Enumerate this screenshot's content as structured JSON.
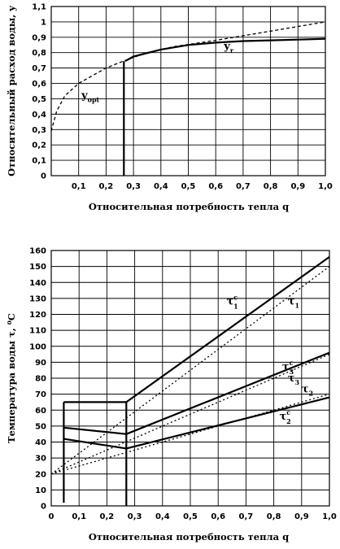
{
  "chart_data": [
    {
      "type": "line",
      "xlabel": "Относительная потребность тепла q",
      "ylabel": "Относительный расход воды, y",
      "xlim": [
        0,
        1.0
      ],
      "ylim": [
        0,
        1.1
      ],
      "grid": true,
      "x_ticks": [
        "0,1",
        "0,2",
        "0,3",
        "0,4",
        "0,5",
        "0,6",
        "0,7",
        "0,8",
        "0,9",
        "1,0"
      ],
      "y_ticks": [
        "0",
        "0,1",
        "0,2",
        "0,3",
        "0,4",
        "0,5",
        "0,6",
        "0,7",
        "0,8",
        "0,9",
        "1",
        "1,1"
      ],
      "series": [
        {
          "name": "y_opt",
          "style": "dashed-then-dotted",
          "x": [
            0,
            0.02,
            0.05,
            0.1,
            0.15,
            0.2,
            0.27,
            0.35,
            0.45,
            0.6,
            0.8,
            1.0
          ],
          "y": [
            0.29,
            0.42,
            0.52,
            0.6,
            0.65,
            0.7,
            0.75,
            0.8,
            0.84,
            0.88,
            0.94,
            1.0
          ]
        },
        {
          "name": "y_r",
          "style": "solid",
          "x": [
            0.27,
            0.3,
            0.4,
            0.5,
            0.6,
            0.7,
            0.8,
            0.9,
            1.0
          ],
          "y": [
            0.745,
            0.775,
            0.82,
            0.85,
            0.865,
            0.875,
            0.88,
            0.885,
            0.89
          ]
        },
        {
          "name": "q=0.27 drop",
          "style": "solid",
          "x": [
            0.265,
            0.265
          ],
          "y": [
            0,
            0.745
          ]
        }
      ],
      "annotations": [
        {
          "text": "y",
          "sub": "opt",
          "x": 0.11,
          "y": 0.5
        },
        {
          "text": "y",
          "sub": "r",
          "x": 0.63,
          "y": 0.82
        }
      ]
    },
    {
      "type": "line",
      "xlabel": "Относительная потребность тепла q",
      "ylabel": "Температура воды τ, ⁰C",
      "xlim": [
        0,
        1.0
      ],
      "ylim": [
        0,
        160
      ],
      "grid": true,
      "x_ticks": [
        "0",
        "0,1",
        "0,2",
        "0,3",
        "0,4",
        "0,5",
        "0,6",
        "0,7",
        "0,8",
        "0,9",
        "1,0"
      ],
      "y_ticks": [
        "0",
        "10",
        "20",
        "30",
        "40",
        "50",
        "60",
        "70",
        "80",
        "90",
        "100",
        "110",
        "120",
        "130",
        "140",
        "150",
        "160"
      ],
      "series": [
        {
          "name": "τ1",
          "style": "dotted",
          "x": [
            0,
            1.0
          ],
          "y": [
            20,
            150
          ]
        },
        {
          "name": "τ3",
          "style": "dotted",
          "x": [
            0,
            1.0
          ],
          "y": [
            20,
            95
          ]
        },
        {
          "name": "τ2",
          "style": "dotted",
          "x": [
            0,
            1.0
          ],
          "y": [
            20,
            70
          ]
        },
        {
          "name": "τ1c",
          "style": "solid",
          "x": [
            0.045,
            0.27,
            0.27,
            1.0
          ],
          "y": [
            65,
            65,
            65,
            156
          ]
        },
        {
          "name": "τ3c",
          "style": "solid",
          "x": [
            0.045,
            0.27,
            1.0
          ],
          "y": [
            49,
            45,
            96
          ]
        },
        {
          "name": "τ2c",
          "style": "solid",
          "x": [
            0.045,
            0.27,
            1.0
          ],
          "y": [
            42,
            36,
            68
          ]
        },
        {
          "name": "q=0.045 drop",
          "style": "solid",
          "x": [
            0.045,
            0.045
          ],
          "y": [
            2,
            65
          ]
        },
        {
          "name": "q=0.27 drop",
          "style": "solid",
          "x": [
            0.27,
            0.27
          ],
          "y": [
            0,
            65
          ]
        }
      ],
      "annotations": [
        {
          "text": "τ",
          "sub": "1",
          "sup": "c",
          "x": 0.63,
          "y": 126
        },
        {
          "text": "τ",
          "sub": "1",
          "x": 0.85,
          "y": 126
        },
        {
          "text": "τ",
          "sub": "3",
          "sup": "c",
          "x": 0.83,
          "y": 85
        },
        {
          "text": "τ",
          "sub": "3",
          "x": 0.85,
          "y": 78
        },
        {
          "text": "τ",
          "sub": "2",
          "x": 0.9,
          "y": 71
        },
        {
          "text": "τ",
          "sub": "2",
          "sup": "c",
          "x": 0.82,
          "y": 54
        }
      ]
    }
  ]
}
